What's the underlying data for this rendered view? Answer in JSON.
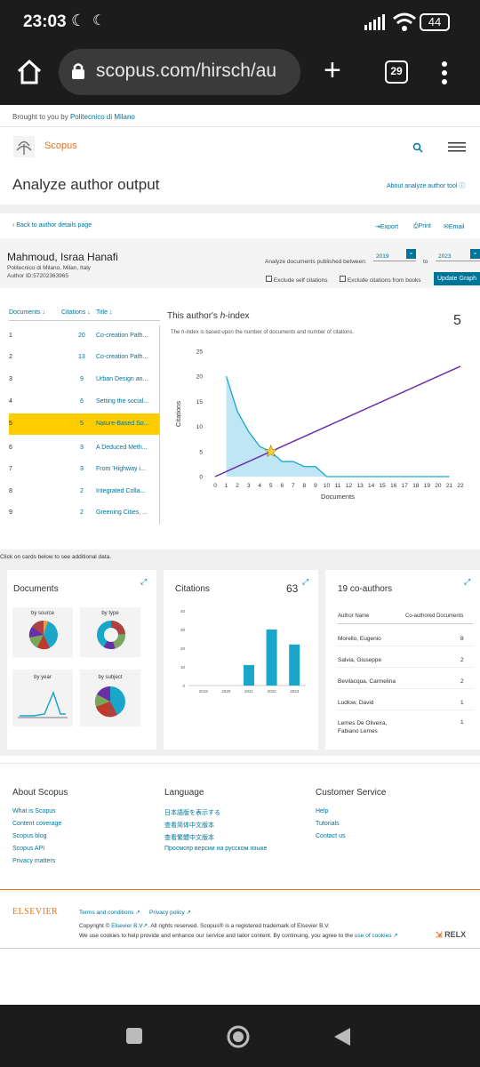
{
  "status": {
    "time": "23:03",
    "battery": "44"
  },
  "browser": {
    "url": "scopus.com/hirsch/au",
    "tab_count": "29"
  },
  "header": {
    "brought_prefix": "Brought to you by",
    "brought_link": "Politecnico di Milano",
    "logo_text": "Scopus",
    "page_title": "Analyze author output",
    "about_link": "About analyze author tool"
  },
  "toolbar": {
    "back": "Back to author details page",
    "export": "Export",
    "print": "Print",
    "email": "Email"
  },
  "author": {
    "name": "Mahmoud, Israa Hanafi",
    "affiliation": "Politecnico di Milano, Milan, Italy",
    "author_id": "Author ID:57202363965"
  },
  "filters": {
    "label": "Analyze documents published between:",
    "from_year": "2019",
    "to_label": "to",
    "to_year": "2023",
    "exclude_self": "Exclude self citations",
    "exclude_books": "Exclude citations from books",
    "update_button": "Update Graph"
  },
  "doc_table": {
    "headers": [
      "Documents",
      "Citations",
      "Title"
    ],
    "rows": [
      {
        "n": "1",
        "cit": "20",
        "title": "Co-creation Path..."
      },
      {
        "n": "2",
        "cit": "13",
        "title": "Co-creation Path..."
      },
      {
        "n": "3",
        "cit": "9",
        "title": "Urban Design an..."
      },
      {
        "n": "4",
        "cit": "6",
        "title": "Setting the social..."
      },
      {
        "n": "5",
        "cit": "5",
        "title": "Nature-Based So..."
      },
      {
        "n": "6",
        "cit": "3",
        "title": "A Deduced Meth..."
      },
      {
        "n": "7",
        "cit": "3",
        "title": "From 'Highway i..."
      },
      {
        "n": "8",
        "cit": "2",
        "title": "Integrated Colla..."
      },
      {
        "n": "9",
        "cit": "2",
        "title": "Greening Cities, ..."
      }
    ]
  },
  "hindex": {
    "title_prefix": "This author's",
    "title_h": "h",
    "title_suffix": "-index",
    "value": "5",
    "desc_prefix": "The",
    "desc_h": "h",
    "desc_suffix": "-index is based upon the number of documents and number of citations."
  },
  "chart_data": {
    "type": "area",
    "xlabel": "Documents",
    "ylabel": "Citations",
    "xlim": [
      0,
      22
    ],
    "ylim": [
      0,
      25
    ],
    "x_ticks": [
      "0",
      "1",
      "2",
      "3",
      "4",
      "5",
      "6",
      "7",
      "8",
      "9",
      "10",
      "11",
      "12",
      "13",
      "14",
      "15",
      "16",
      "17",
      "18",
      "19",
      "20",
      "21",
      "22"
    ],
    "y_ticks": [
      "0",
      "5",
      "10",
      "15",
      "20",
      "25"
    ],
    "series": [
      {
        "x": [
          1,
          2,
          3,
          4,
          5,
          6,
          7,
          8,
          9,
          10,
          11,
          12,
          13,
          14,
          15,
          16,
          17,
          18,
          19,
          20,
          21
        ],
        "values": [
          20,
          13,
          9,
          6,
          5,
          3,
          3,
          2,
          2,
          0,
          0,
          0,
          0,
          0,
          0,
          0,
          0,
          0,
          0,
          0,
          0
        ]
      },
      {
        "x": [
          0,
          22
        ],
        "values": [
          0,
          22
        ]
      }
    ],
    "marker": {
      "x": 5,
      "y": 5
    },
    "colors": {
      "area": "#bfe6f4",
      "line": "#1aa6c9",
      "diag": "#6a2ea6",
      "star": "#f4d03f"
    }
  },
  "info_text": "Click on cards below to see additional data.",
  "documents_card": {
    "title": "Documents",
    "by_source": "by source",
    "by_type": "by type",
    "by_year": "by year",
    "by_subject": "by subject"
  },
  "citations_card": {
    "title": "Citations",
    "total": "63",
    "chart": {
      "type": "bar",
      "categories": [
        "2019",
        "2020",
        "2021",
        "2022",
        "2023"
      ],
      "values": [
        0,
        0,
        11,
        30,
        22
      ],
      "y_ticks": [
        "0",
        "10",
        "20",
        "30",
        "40"
      ],
      "ylim": [
        0,
        40
      ]
    }
  },
  "coauthors_card": {
    "title": "19 co-authors",
    "col1": "Author Name",
    "col2": "Co-authored Documents",
    "rows": [
      {
        "name": "Morello, Eugenio",
        "count": "8"
      },
      {
        "name": "Salvia, Giuseppe",
        "count": "2"
      },
      {
        "name": "Bevilacqua, Carmelina",
        "count": "2"
      },
      {
        "name": "Ludlow, David",
        "count": "1"
      },
      {
        "name": "Lemes De Oliveira, Fabiano Lemes",
        "count": "1"
      }
    ]
  },
  "footer": {
    "about_title": "About Scopus",
    "about_links": [
      "What is Scopus",
      "Content coverage",
      "Scopus blog",
      "Scopus API",
      "Privacy matters"
    ],
    "lang_title": "Language",
    "lang_links": [
      "日本語版を表示する",
      "查看简体中文版本",
      "查看繁體中文版本",
      "Просмотр версии на русском языке"
    ],
    "cs_title": "Customer Service",
    "cs_links": [
      "Help",
      "Tutorials",
      "Contact us"
    ],
    "elsevier": "ELSEVIER",
    "terms": "Terms and conditions",
    "privacy": "Privacy policy",
    "copyright_prefix": "Copyright ©",
    "copyright_link": "Elsevier B.V",
    "copyright_suffix": ". All rights reserved. Scopus® is a registered trademark of Elsevier B.V.",
    "cookies_prefix": "We use cookies to help provide and enhance our service and tailor content. By continuing, you agree to the",
    "cookies_link": "use of cookies",
    "relx": "RELX"
  }
}
